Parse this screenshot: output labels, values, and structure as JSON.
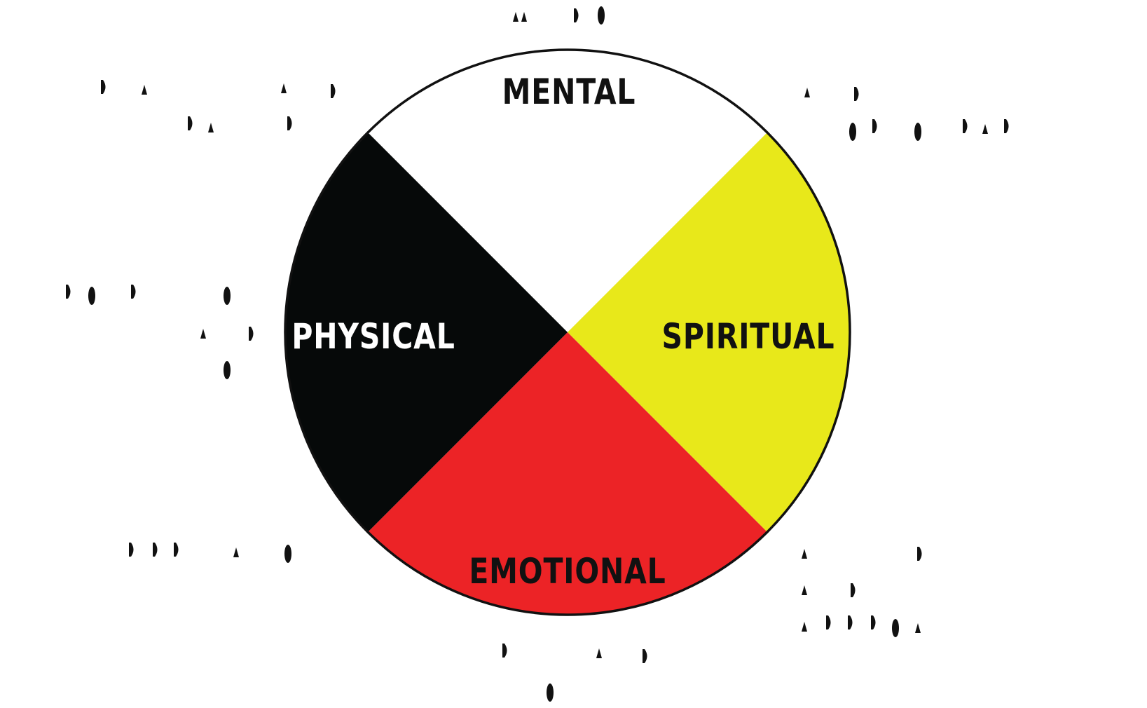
{
  "title": "",
  "wheel": {
    "quadrants": [
      {
        "key": "top",
        "label": "MENTAL",
        "fill": "#ffffff",
        "text_color": "#111111"
      },
      {
        "key": "right",
        "label": "SPIRITUAL",
        "fill": "#e8e81a",
        "text_color": "#111111"
      },
      {
        "key": "bottom",
        "label": "EMOTIONAL",
        "fill": "#ec2326",
        "text_color": "#111111"
      },
      {
        "key": "left",
        "label": "PHYSICAL",
        "fill": "#060909",
        "text_color": "#ffffff"
      }
    ],
    "outline_color": "#111111"
  },
  "decoration": {
    "marks_color": "#111111"
  }
}
